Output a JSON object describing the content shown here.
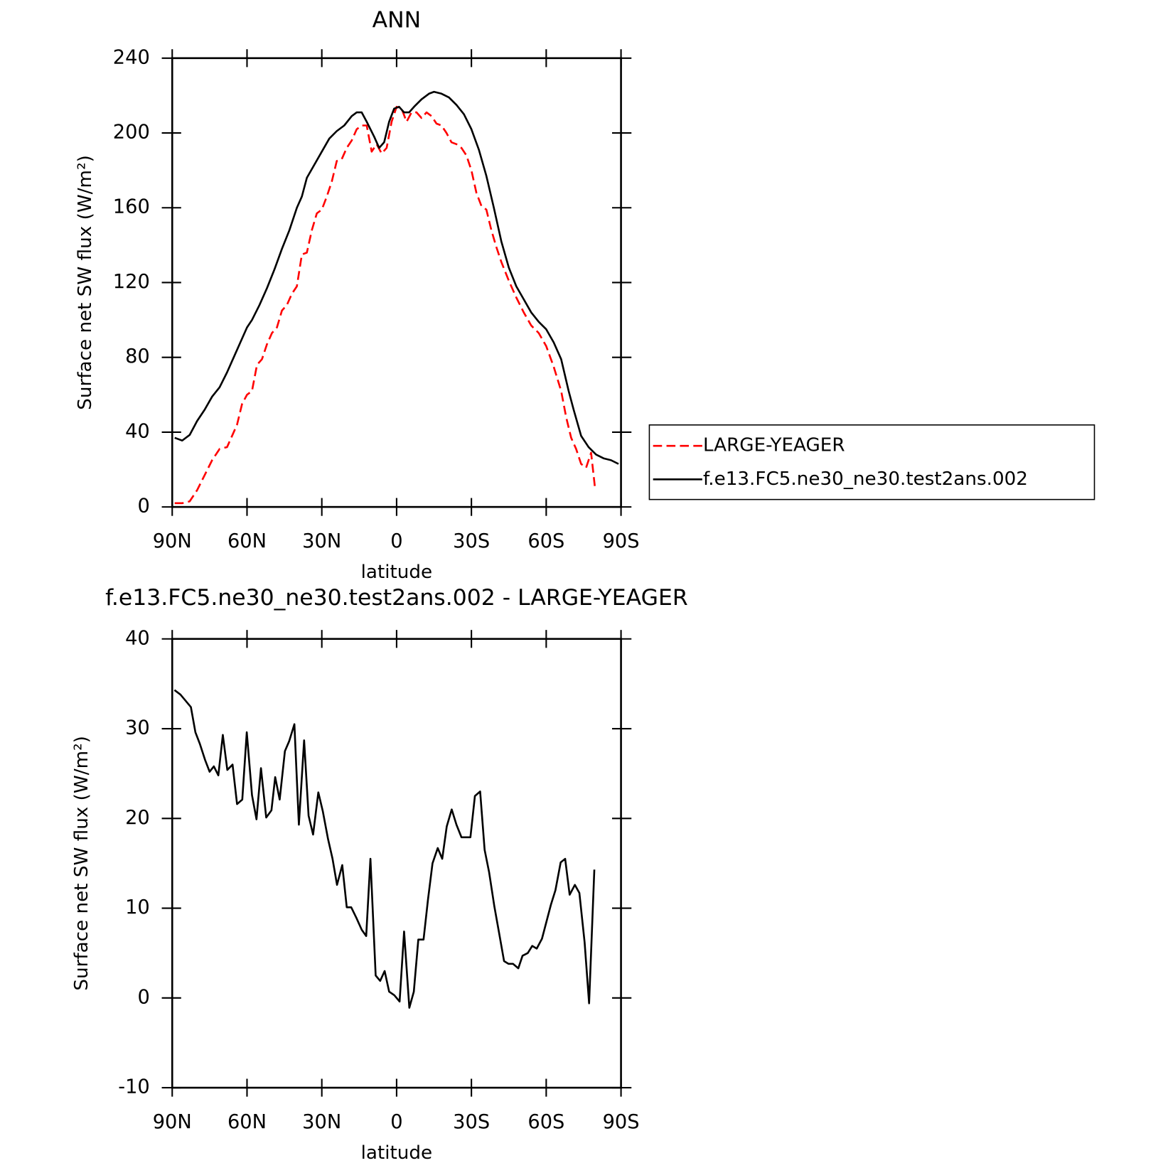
{
  "chart_data": [
    {
      "type": "line",
      "title": "ANN",
      "xlabel": "latitude",
      "ylabel": "Surface net SW flux (W/m²)",
      "xlim": [
        90,
        -90
      ],
      "ylim": [
        0,
        240
      ],
      "xticks": [
        {
          "value": 90,
          "label": "90N"
        },
        {
          "value": 60,
          "label": "60N"
        },
        {
          "value": 30,
          "label": "30N"
        },
        0,
        {
          "value": -30,
          "label": "30S"
        },
        {
          "value": -60,
          "label": "60S"
        },
        {
          "value": -90,
          "label": "90S"
        }
      ],
      "yticks": [
        0,
        40,
        80,
        120,
        160,
        200,
        240
      ],
      "legend": "right",
      "series": [
        {
          "name": "LARGE-YEAGER",
          "color": "#ff0000",
          "dashed": true,
          "x": [
            89,
            86,
            83,
            80,
            77,
            74,
            71,
            68,
            66,
            64,
            62,
            60,
            58,
            56,
            54,
            52,
            50,
            48,
            46,
            44,
            42,
            40,
            38,
            36,
            34,
            32,
            30,
            28,
            26,
            24,
            22,
            20,
            18,
            16,
            14,
            12,
            10,
            8,
            6,
            4,
            2,
            0,
            -2,
            -4,
            -6,
            -8,
            -10,
            -12,
            -14,
            -16,
            -18,
            -20,
            -22,
            -24,
            -26,
            -28,
            -30,
            -32,
            -34,
            -36,
            -38,
            -40,
            -42,
            -45,
            -48,
            -51,
            -54,
            -57,
            -60,
            -63,
            -66,
            -68,
            -70,
            -72,
            -74,
            -76,
            -78,
            -79.5
          ],
          "values": [
            2,
            2,
            3,
            9,
            17,
            25,
            31,
            32,
            38,
            44,
            55,
            60,
            62,
            76,
            79,
            87,
            93,
            96,
            105,
            108,
            114,
            118,
            135,
            136,
            148,
            157,
            159,
            166,
            174,
            185,
            186,
            192,
            196,
            202,
            204,
            204,
            190,
            194,
            189,
            192,
            206,
            214,
            213,
            206,
            211,
            211,
            208,
            211,
            209,
            205,
            204,
            200,
            195,
            194,
            192,
            188,
            180,
            168,
            161,
            159,
            148,
            139,
            131,
            121,
            112,
            104,
            97,
            93,
            86,
            75,
            62,
            48,
            37,
            31,
            23,
            21,
            29,
            11
          ]
        },
        {
          "name": "f.e13.FC5.ne30_ne30.test2ans.002",
          "color": "#000000",
          "dashed": false,
          "x": [
            89,
            86,
            83,
            80,
            77,
            74,
            71,
            68,
            65,
            62,
            60,
            58,
            55,
            52,
            49,
            46,
            43,
            40,
            38,
            36,
            33,
            30,
            27,
            24,
            21,
            18,
            16,
            14,
            12,
            9,
            7,
            5,
            3,
            1,
            -1,
            -3,
            -5,
            -7,
            -10,
            -13,
            -15,
            -18,
            -21,
            -24,
            -27,
            -30,
            -33,
            -36,
            -39,
            -42,
            -45,
            -48,
            -51,
            -54,
            -57,
            -60,
            -63,
            -66,
            -69,
            -71,
            -74,
            -77,
            -80,
            -83,
            -86,
            -89
          ],
          "values": [
            37,
            35.5,
            38.5,
            46,
            52,
            59,
            64,
            72,
            81,
            90,
            96,
            100,
            108,
            117,
            127,
            138,
            148,
            160,
            166,
            176,
            183,
            190,
            197,
            201,
            204,
            209,
            211,
            211,
            206,
            198,
            192,
            195,
            206,
            213,
            214,
            211,
            211,
            214,
            218,
            221,
            222,
            221,
            219,
            215,
            210,
            202,
            191,
            177,
            160,
            142,
            128,
            118,
            111,
            104,
            99,
            95,
            88,
            79,
            62,
            52,
            38,
            32,
            28,
            26,
            25,
            23
          ]
        }
      ]
    },
    {
      "type": "line",
      "title": "f.e13.FC5.ne30_ne30.test2ans.002 - LARGE-YEAGER",
      "xlabel": "latitude",
      "ylabel": "Surface net SW flux (W/m²)",
      "xlim": [
        90,
        -90
      ],
      "ylim": [
        -10,
        40
      ],
      "xticks": [
        {
          "value": 90,
          "label": "90N"
        },
        {
          "value": 60,
          "label": "60N"
        },
        {
          "value": 30,
          "label": "30N"
        },
        0,
        {
          "value": -30,
          "label": "30S"
        },
        {
          "value": -60,
          "label": "60S"
        },
        {
          "value": -90,
          "label": "90S"
        }
      ],
      "yticks": [
        -10,
        0,
        10,
        20,
        30,
        40
      ],
      "series": [
        {
          "color": "#000000",
          "dashed": false,
          "x": [
            89.1,
            86.7,
            82.5,
            80.7,
            78.9,
            76.8,
            75.0,
            73.3,
            71.5,
            69.7,
            67.9,
            65.8,
            64.0,
            61.9,
            60.1,
            58.0,
            56.2,
            54.4,
            52.3,
            50.2,
            48.7,
            46.9,
            44.8,
            43.1,
            41.0,
            39.2,
            37.1,
            35.3,
            33.5,
            31.4,
            29.6,
            27.5,
            25.7,
            23.9,
            21.8,
            20.0,
            18.2,
            16.1,
            14.0,
            12.2,
            10.5,
            8.4,
            6.6,
            4.8,
            3.0,
            0.9,
            -1.2,
            -3.0,
            -5.1,
            -6.9,
            -8.7,
            -10.8,
            -12.6,
            -14.4,
            -16.5,
            -18.3,
            -20.1,
            -22.1,
            -24.0,
            -26.0,
            -27.8,
            -29.6,
            -31.4,
            -33.5,
            -35.3,
            -37.1,
            -39.2,
            -41.0,
            -43.1,
            -44.9,
            -46.7,
            -48.8,
            -50.5,
            -52.6,
            -54.4,
            -56.2,
            -58.3,
            -60.1,
            -61.9,
            -63.7,
            -65.8,
            -67.6,
            -69.4,
            -71.5,
            -73.3,
            -75.4,
            -77.2,
            -79.3
          ],
          "values": [
            34.3,
            33.8,
            32.4,
            29.6,
            28.3,
            26.5,
            25.2,
            25.8,
            24.8,
            29.3,
            25.4,
            26.0,
            21.6,
            22.1,
            29.6,
            22.6,
            19.9,
            25.6,
            20.1,
            20.9,
            24.6,
            22.1,
            27.5,
            28.6,
            30.5,
            19.3,
            28.7,
            20.3,
            18.2,
            22.9,
            20.8,
            17.7,
            15.5,
            12.6,
            14.8,
            10.1,
            10.1,
            8.9,
            7.6,
            6.9,
            15.5,
            2.5,
            1.9,
            3.0,
            0.7,
            0.3,
            -0.4,
            7.4,
            -1.1,
            0.7,
            6.5,
            6.5,
            11.0,
            15.0,
            16.7,
            15.5,
            19.1,
            21.0,
            19.3,
            17.9,
            17.9,
            17.9,
            22.5,
            23.0,
            16.5,
            14.0,
            10.2,
            7.4,
            4.1,
            3.8,
            3.8,
            3.3,
            4.7,
            5.0,
            5.8,
            5.5,
            6.6,
            8.5,
            10.4,
            12.0,
            15.1,
            15.5,
            11.5,
            12.6,
            11.7,
            6.2,
            -0.6,
            14.3
          ]
        }
      ]
    }
  ]
}
